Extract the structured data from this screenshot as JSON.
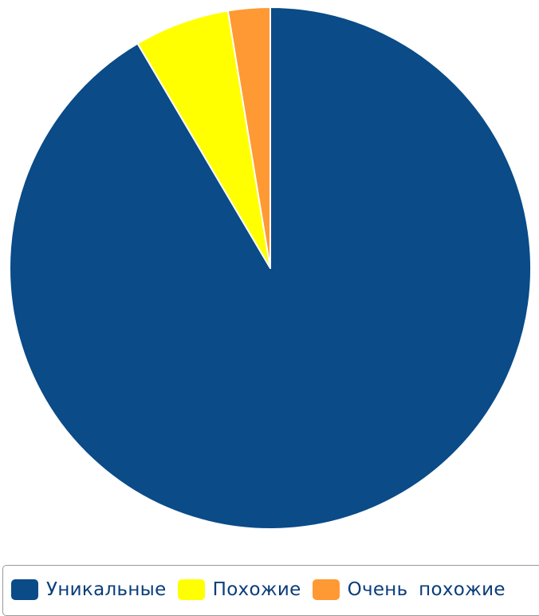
{
  "chart_data": {
    "type": "pie",
    "title": "",
    "slices": [
      {
        "name": "Уникальные",
        "value": 91.5,
        "color": "#0a4b88"
      },
      {
        "name": "Похожие",
        "value": 5.9,
        "color": "#ffff00"
      },
      {
        "name": "Очень похожие",
        "value": 2.6,
        "color": "#ff9933"
      }
    ],
    "start_angle_deg": 0,
    "direction": "clockwise",
    "slice_border_color": "#ffffff",
    "legend_position": "bottom"
  }
}
